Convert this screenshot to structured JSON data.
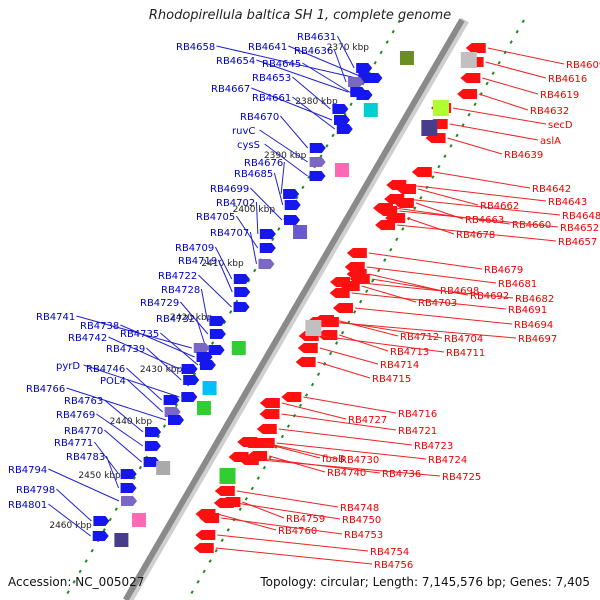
{
  "title": "Rhodopirellula baltica SH 1, complete genome",
  "footer": {
    "accession": "Accession: NC_005027",
    "topology": "Topology: circular; Length: 7,145,576 bp; Genes: 7,405"
  },
  "colors": {
    "forward_label": "#0000cc",
    "reverse_label": "#ee0000",
    "backbone": "#8a8a8a",
    "ticks": "#1f8a1f"
  },
  "position_labels": [
    "2370 kbp",
    "2380 kbp",
    "2390 kbp",
    "2400 kbp",
    "2410 kbp",
    "2420 kbp",
    "2430 kbp",
    "2440 kbp",
    "2450 kbp",
    "2460 kbp"
  ],
  "forward_genes": [
    "RB4631",
    "RB4658",
    "RB4641",
    "RB4636",
    "RB4654",
    "RB4645",
    "RB4653",
    "RB4667",
    "RB4661",
    "RB4670",
    "ruvC",
    "cysS",
    "RB4676",
    "RB4685",
    "RB4699",
    "RB4702",
    "RB4705",
    "RB4707",
    "RB4709",
    "RB4719",
    "RB4722",
    "RB4728",
    "RB4729",
    "RB4732",
    "RB4741",
    "RB4738",
    "RB4735",
    "RB4742",
    "RB4739",
    "pyrD",
    "RB4746",
    "POL4",
    "RB4766",
    "RB4763",
    "RB4769",
    "RB4770",
    "RB4771",
    "RB4783",
    "RB4794",
    "RB4798",
    "RB4801"
  ],
  "reverse_genes": [
    "RB4609",
    "RB4616",
    "RB4619",
    "RB4632",
    "secD",
    "aslA",
    "RB4639",
    "RB4642",
    "RB4643",
    "RB4648",
    "RB4662",
    "RB4663",
    "RB4660",
    "RB4652",
    "RB4657",
    "RB4678",
    "RB4679",
    "RB4681",
    "RB4698",
    "RB4692",
    "RB4682",
    "RB4691",
    "RB4703",
    "RB4694",
    "RB4697",
    "RB4712",
    "RB4704",
    "RB4713",
    "RB4711",
    "RB4714",
    "RB4715",
    "RB4716",
    "RB4727",
    "RB4721",
    "RB4723",
    "RB4724",
    "fbaB",
    "RB4730",
    "RB4725",
    "RB4740",
    "RB4736",
    "RB4748",
    "RB4750",
    "RB4759",
    "RB4760",
    "RB4753",
    "RB4754",
    "RB4756"
  ]
}
